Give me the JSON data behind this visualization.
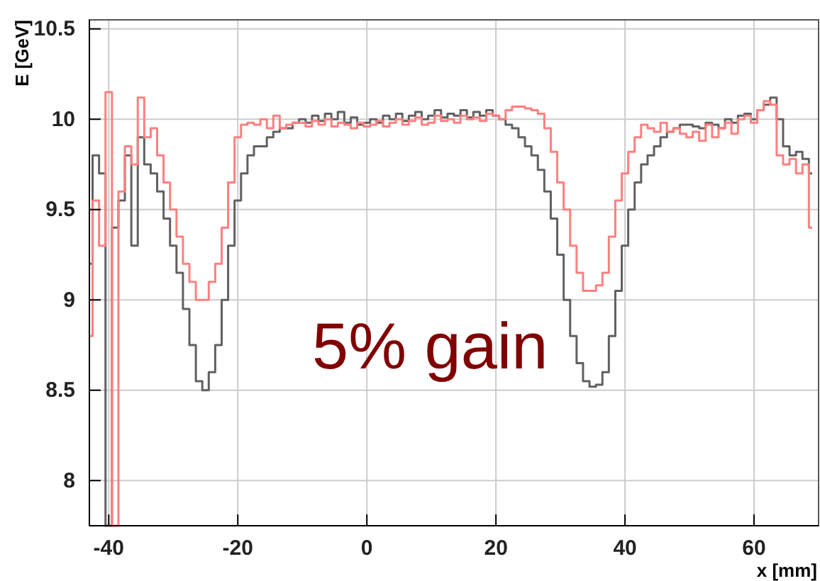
{
  "chart_data": {
    "type": "step",
    "xlabel": "x [mm]",
    "ylabel": "E [GeV]",
    "annotations": [
      "5% gain"
    ],
    "xlim": [
      -43,
      70
    ],
    "ylim": [
      7.75,
      10.55
    ],
    "xticks": [
      -40,
      -20,
      0,
      20,
      40,
      60
    ],
    "yticks": [
      8,
      8.5,
      9,
      9.5,
      10,
      10.5
    ],
    "grid": true,
    "x": [
      -43,
      -42,
      -41,
      -40,
      -39,
      -38,
      -37,
      -36,
      -35,
      -34,
      -33,
      -32,
      -31,
      -30,
      -29,
      -28,
      -27,
      -26,
      -25,
      -24,
      -23,
      -22,
      -21,
      -20,
      -19,
      -18,
      -17,
      -16,
      -15,
      -14,
      -13,
      -12,
      -11,
      -10,
      -9,
      -8,
      -7,
      -6,
      -5,
      -4,
      -3,
      -2,
      -1,
      0,
      1,
      2,
      3,
      4,
      5,
      6,
      7,
      8,
      9,
      10,
      11,
      12,
      13,
      14,
      15,
      16,
      17,
      18,
      19,
      20,
      21,
      22,
      23,
      24,
      25,
      26,
      27,
      28,
      29,
      30,
      31,
      32,
      33,
      34,
      35,
      36,
      37,
      38,
      39,
      40,
      41,
      42,
      43,
      44,
      45,
      46,
      47,
      48,
      49,
      50,
      51,
      52,
      53,
      54,
      55,
      56,
      57,
      58,
      59,
      60,
      61,
      62,
      63,
      64,
      65,
      66,
      67,
      68,
      69
    ],
    "series": [
      {
        "color": "#606060",
        "values": [
          9.2,
          9.8,
          9.7,
          7.75,
          9.4,
          9.55,
          9.8,
          9.3,
          9.9,
          9.75,
          9.7,
          9.6,
          9.45,
          9.3,
          9.15,
          8.95,
          8.75,
          8.55,
          8.5,
          8.6,
          8.75,
          9.0,
          9.3,
          9.55,
          9.7,
          9.8,
          9.85,
          9.85,
          9.9,
          9.93,
          9.95,
          9.95,
          9.98,
          10.0,
          9.98,
          10.02,
          9.99,
          10.03,
          10.0,
          10.04,
          9.98,
          10.01,
          9.97,
          9.98,
          10.0,
          9.98,
          10.02,
          10.0,
          10.03,
          9.99,
          10.02,
          10.04,
          10.0,
          10.02,
          10.05,
          10.01,
          10.03,
          10.02,
          10.05,
          10.01,
          10.04,
          10.02,
          10.05,
          10.02,
          10.0,
          9.97,
          9.95,
          9.9,
          9.85,
          9.8,
          9.72,
          9.6,
          9.45,
          9.25,
          9.0,
          8.8,
          8.65,
          8.55,
          8.52,
          8.53,
          8.6,
          8.8,
          9.05,
          9.3,
          9.5,
          9.65,
          9.75,
          9.8,
          9.85,
          9.9,
          9.93,
          9.95,
          9.97,
          9.97,
          9.96,
          9.95,
          9.98,
          9.97,
          9.95,
          10.0,
          9.98,
          10.02,
          10.03,
          10.0,
          10.05,
          10.08,
          10.12,
          10.0,
          9.85,
          9.8,
          9.82,
          9.78,
          9.7
        ]
      },
      {
        "color": "#ff7f7f",
        "values": [
          8.8,
          9.55,
          9.3,
          10.15,
          7.75,
          9.6,
          9.85,
          9.75,
          10.12,
          9.9,
          9.95,
          9.8,
          9.65,
          9.5,
          9.35,
          9.2,
          9.1,
          9.0,
          9.0,
          9.1,
          9.2,
          9.4,
          9.65,
          9.9,
          9.97,
          9.98,
          9.97,
          10.0,
          9.95,
          10.02,
          9.95,
          9.97,
          9.98,
          9.98,
          9.96,
          9.99,
          9.97,
          10.0,
          9.96,
          9.98,
          9.97,
          9.95,
          9.98,
          9.96,
          9.97,
          9.99,
          9.96,
          9.98,
          10.0,
          9.97,
          9.99,
          10.01,
          9.97,
          9.98,
          10.02,
          9.99,
          10.0,
          9.98,
          10.02,
          10.0,
          10.01,
          9.99,
          10.03,
          10.02,
          10.0,
          10.05,
          10.07,
          10.07,
          10.06,
          10.05,
          10.03,
          9.95,
          9.82,
          9.65,
          9.5,
          9.3,
          9.15,
          9.05,
          9.05,
          9.08,
          9.15,
          9.35,
          9.55,
          9.7,
          9.82,
          9.9,
          9.97,
          9.95,
          9.93,
          9.98,
          9.93,
          9.95,
          9.92,
          9.9,
          9.93,
          9.88,
          9.97,
          9.9,
          9.95,
          9.98,
          9.92,
          10.0,
          10.02,
          9.98,
          10.05,
          10.1,
          10.08,
          9.8,
          9.75,
          9.78,
          9.7,
          9.75,
          9.4
        ]
      }
    ]
  }
}
